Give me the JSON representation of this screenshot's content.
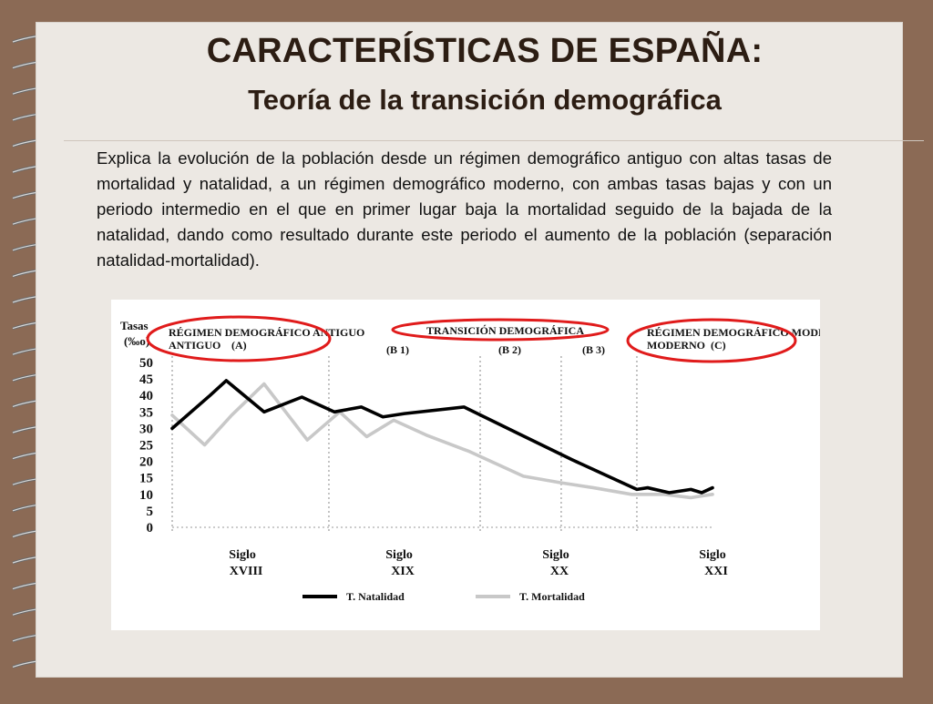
{
  "slide": {
    "title": "CARACTERÍSTICAS DE ESPAÑA:",
    "subtitle": "Teoría de la transición demográfica",
    "paragraph": "Explica la evolución de la población desde un régimen demográfico antiguo con altas tasas de mortalidad y natalidad, a un régimen demográfico moderno, con ambas tasas bajas y con un periodo intermedio en el que en primer lugar baja la mortalidad seguido de la bajada de la natalidad, dando como resultado durante este periodo el aumento de la población (separación natalidad-mortalidad)."
  },
  "colors": {
    "background": "#8b6a55",
    "page": "#ece8e3",
    "title": "#2c1d13",
    "natalidad": "#000000",
    "mortalidad": "#c8c8c8",
    "highlight": "#e01b1b"
  },
  "chart_data": {
    "type": "line",
    "ylabel": "Tasas (‰o)",
    "ylim": [
      0,
      50
    ],
    "yticks": [
      "50",
      "45",
      "40",
      "35",
      "30",
      "25",
      "20",
      "15",
      "10",
      "5",
      "0"
    ],
    "xlim": [
      0,
      100
    ],
    "grid": "dotted vertical lines",
    "phase_labels": {
      "a": "RÉGIMEN DEMOGRÁFICO ANTIGUO",
      "a_letter": "(A)",
      "transition": "TRANSICIÓN DEMOGRÁFICA",
      "b1": "(B 1)",
      "b2": "(B 2)",
      "b3": "(B 3)",
      "c": "RÉGIMEN DEMOGRÁFICO MODERNO",
      "c_letter": "(C)"
    },
    "x_ticks": [
      {
        "l1": "Siglo",
        "l2": "XVIII",
        "x": 13
      },
      {
        "l1": "Siglo",
        "l2": "XIX",
        "x": 42
      },
      {
        "l1": "Siglo",
        "l2": "XX",
        "x": 71
      },
      {
        "l1": "Siglo",
        "l2": "XXI",
        "x": 100
      }
    ],
    "vlines": [
      0,
      29,
      57,
      72,
      86
    ],
    "series": [
      {
        "name": "T. Natalidad",
        "color": "#000000",
        "x": [
          0,
          7,
          10,
          17,
          24,
          30,
          35,
          39,
          43,
          54,
          64,
          74,
          86,
          88,
          92,
          96,
          98,
          100
        ],
        "y": [
          30,
          40,
          44.5,
          35,
          39.5,
          35,
          36.5,
          33.5,
          34.5,
          36.5,
          28.5,
          20.5,
          11.5,
          12,
          10.5,
          11.5,
          10.5,
          12
        ]
      },
      {
        "name": "T. Mortalidad",
        "color": "#c8c8c8",
        "x": [
          0,
          6,
          11,
          17,
          25,
          31,
          36,
          41,
          47,
          55,
          65,
          72,
          78,
          85,
          91,
          96,
          100
        ],
        "y": [
          34,
          25,
          34,
          43.5,
          26.5,
          35,
          27.5,
          32.5,
          28,
          23,
          15.5,
          13.5,
          12,
          10,
          10,
          9,
          10
        ]
      }
    ]
  }
}
